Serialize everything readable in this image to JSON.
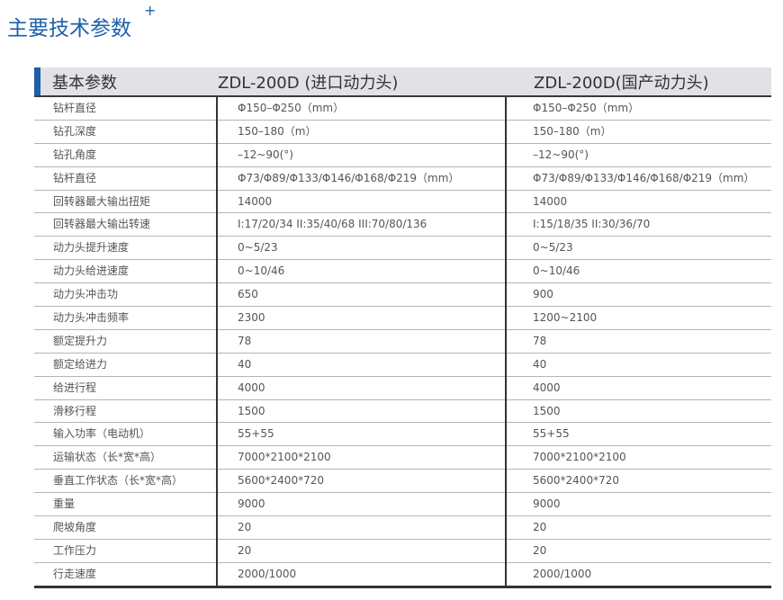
{
  "title": "主要技术参数",
  "title_mark": "+",
  "header": [
    "基本参数",
    "ZDL-200D  (进口动力头)",
    "ZDL-200D(国产动力头)"
  ],
  "rows": [
    [
      "钻杆直径",
      "Φ150–Φ250（mm）",
      "Φ150–Φ250（mm）"
    ],
    [
      "钻孔深度",
      "150–180（m）",
      "150–180（m）"
    ],
    [
      "钻孔角度",
      "–12~90(°)",
      "–12~90(°)"
    ],
    [
      "钻杆直径",
      "Φ73/Φ89/Φ133/Φ146/Φ168/Φ219（mm）",
      "Φ73/Φ89/Φ133/Φ146/Φ168/Φ219（mm）"
    ],
    [
      "回转器最大输出扭矩",
      "14000",
      "14000"
    ],
    [
      "回转器最大输出转速",
      "I:17/20/34 II:35/40/68 III:70/80/136",
      "I:15/18/35 II:30/36/70"
    ],
    [
      "动力头提升速度",
      "0~5/23",
      "0~5/23"
    ],
    [
      "动力头给进速度",
      "0~10/46",
      "0~10/46"
    ],
    [
      "动力头冲击功",
      "650",
      "900"
    ],
    [
      "动力头冲击频率",
      "2300",
      "1200~2100"
    ],
    [
      "额定提升力",
      "78",
      "78"
    ],
    [
      "额定给进力",
      "40",
      "40"
    ],
    [
      "给进行程",
      "4000",
      "4000"
    ],
    [
      "滑移行程",
      "1500",
      "1500"
    ],
    [
      "输入功率（电动机）",
      "55+55",
      "55+55"
    ],
    [
      "运输状态（长*宽*高）",
      "7000*2100*2100",
      "7000*2100*2100"
    ],
    [
      "垂直工作状态（长*宽*高）",
      "5600*2400*720",
      "5600*2400*720"
    ],
    [
      "重量",
      "9000",
      "9000"
    ],
    [
      "爬坡角度",
      "20",
      "20"
    ],
    [
      "工作压力",
      "20",
      "20"
    ],
    [
      "行走速度",
      "2000/1000",
      "2000/1000"
    ]
  ],
  "colors": {
    "accent": "#1d5faa",
    "header_bg": "#e2e2e6"
  }
}
